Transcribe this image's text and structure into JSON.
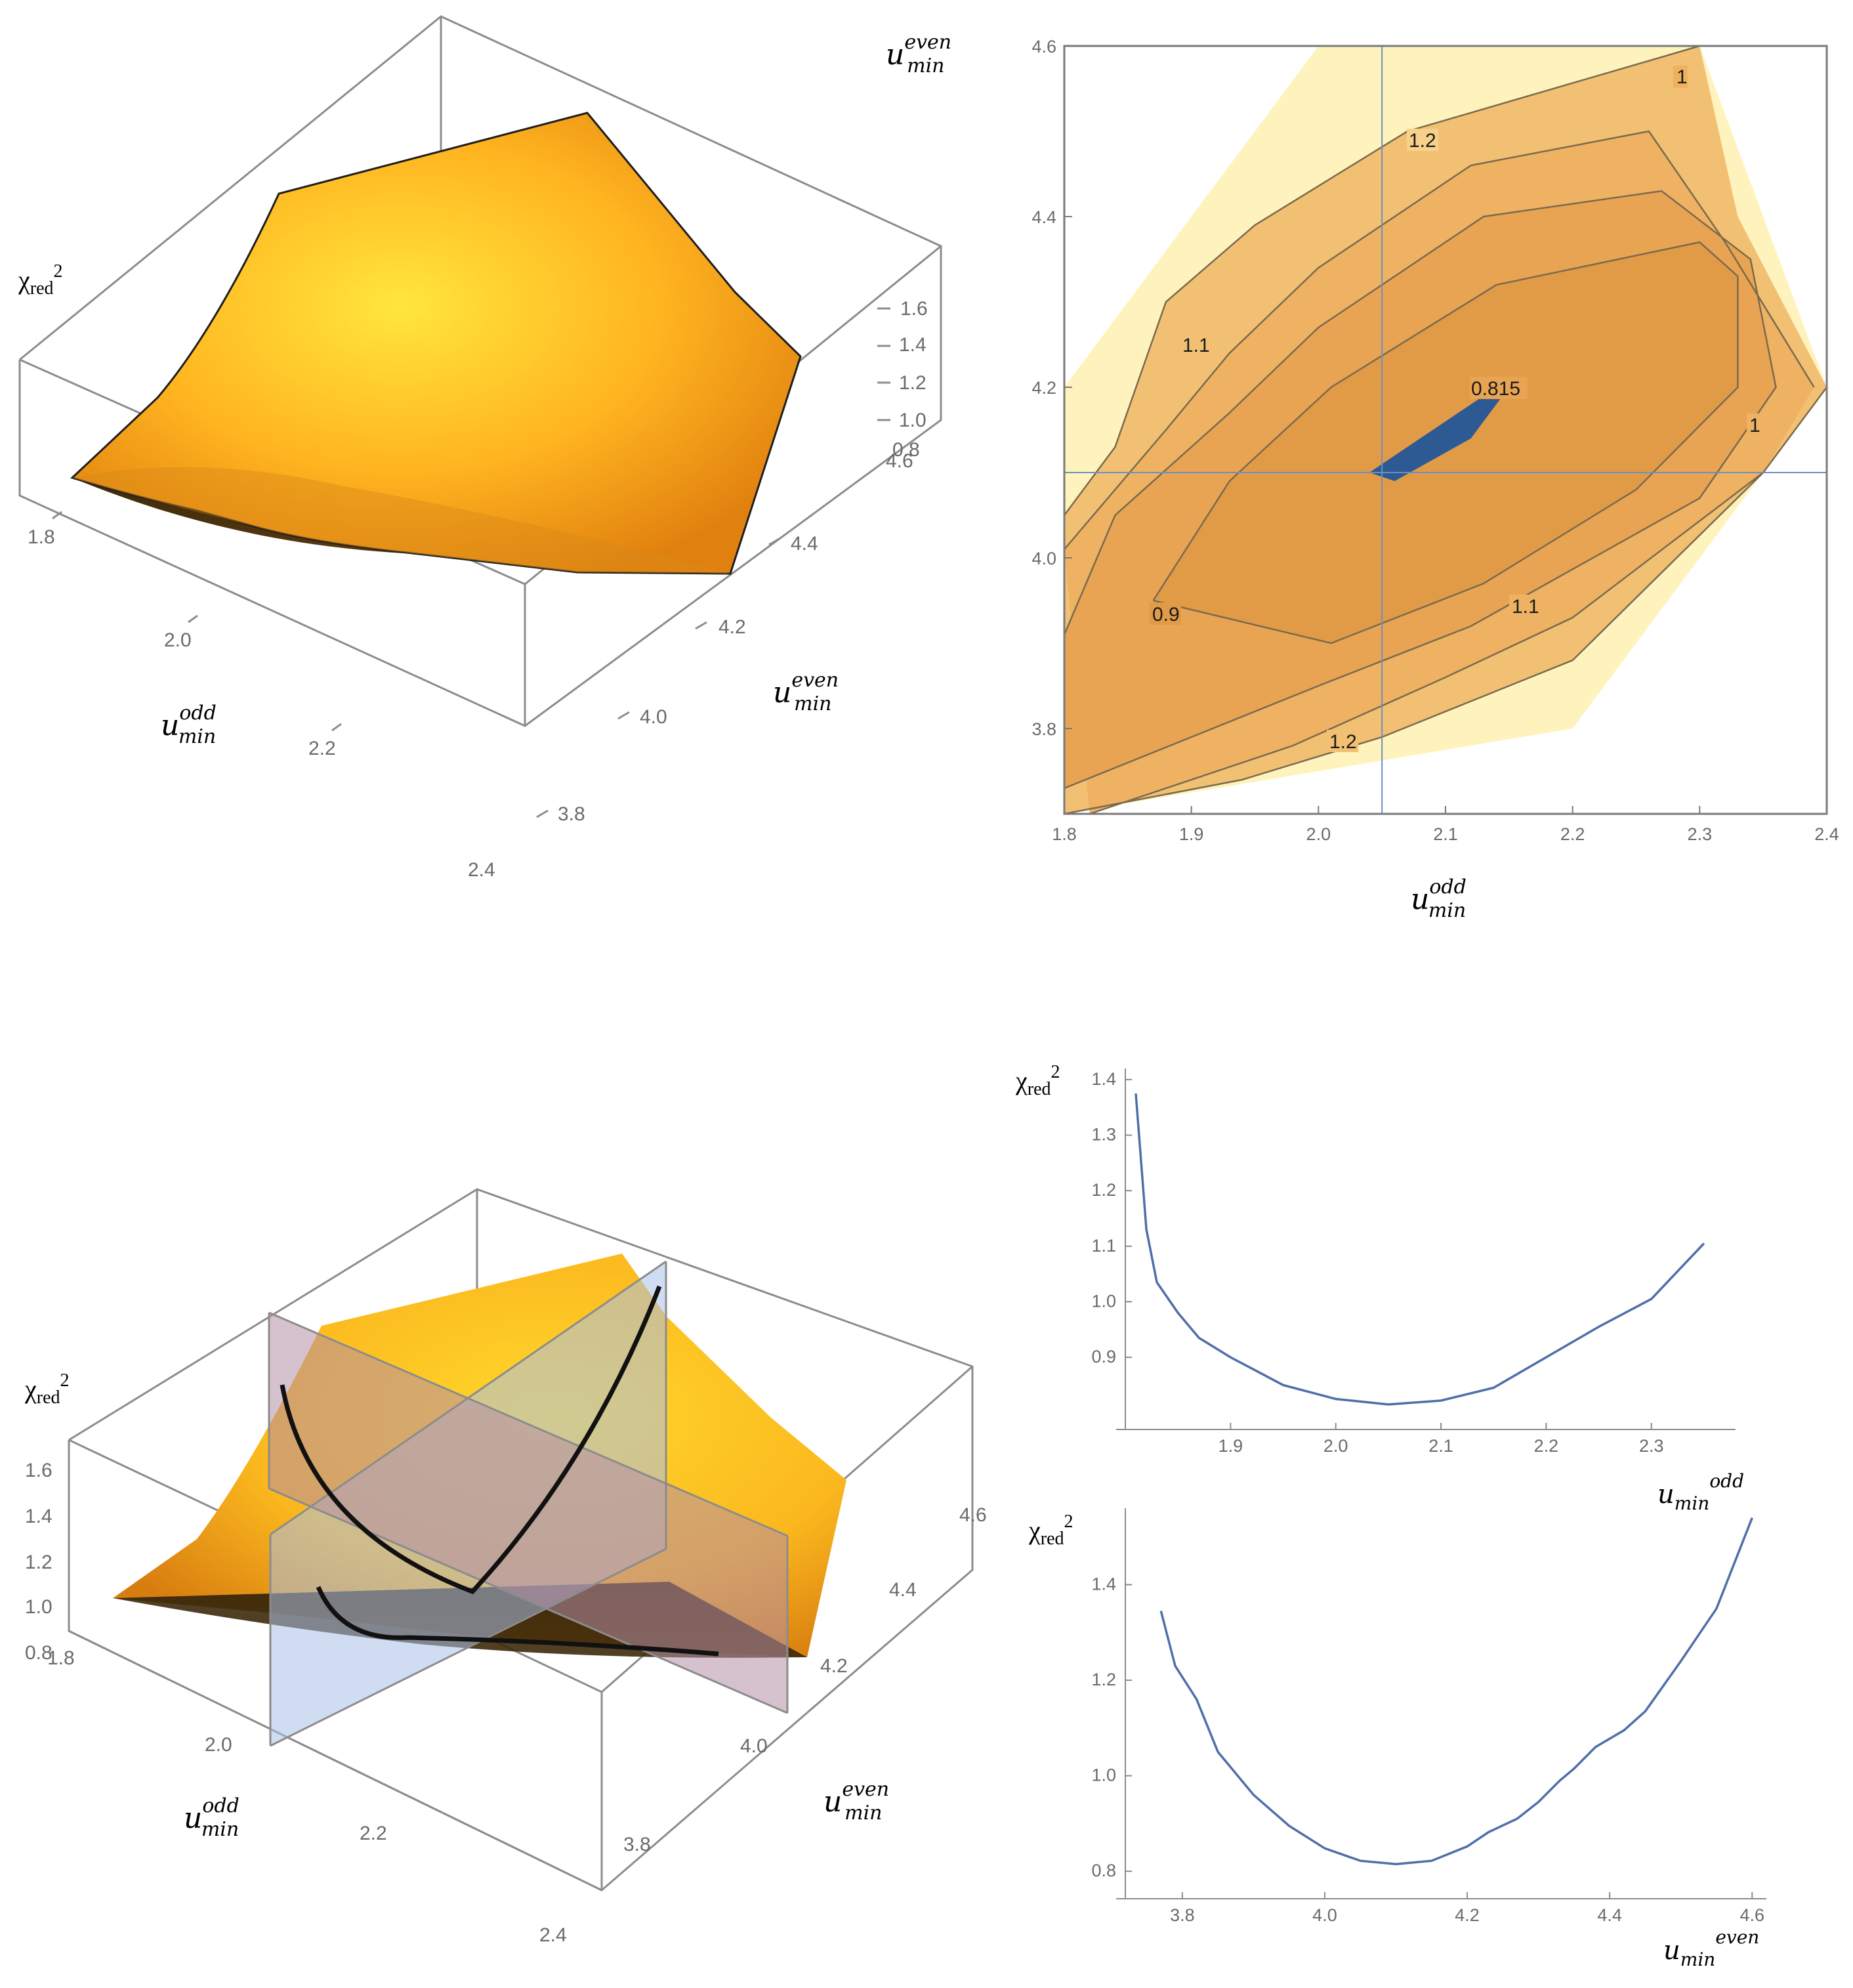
{
  "colors": {
    "surface_light": "#ffe13a",
    "surface_mid": "#ffb21e",
    "surface_dark": "#e8860e",
    "contour_pale": "#fff3bd",
    "contour_1": "#f2c073",
    "contour_2": "#eeb262",
    "contour_3": "#e8a452",
    "contour_4": "#e19b47",
    "minimum": "#2e5a94",
    "line": "#4f6fa8",
    "plane_blue": "#a9c0e6",
    "plane_purple": "#b58ea6"
  },
  "labels": {
    "u": "u",
    "min": "min",
    "odd": "odd",
    "even": "even",
    "chi": "χ",
    "red": "red",
    "sq": "2"
  },
  "chart_data": [
    {
      "type": "surface",
      "panel": "top-left",
      "x_ticks": [
        "1.8",
        "2.0",
        "2.2",
        "2.4"
      ],
      "y_ticks": [
        "3.8",
        "4.0",
        "4.2",
        "4.4",
        "4.6"
      ],
      "z_ticks": [
        "0.8",
        "1.0",
        "1.2",
        "1.4",
        "1.6"
      ],
      "xlim": [
        1.8,
        2.4
      ],
      "ylim": [
        3.7,
        4.6
      ],
      "zlim": [
        0.8,
        1.6
      ]
    },
    {
      "type": "contour",
      "panel": "top-right",
      "x_ticks": [
        "1.8",
        "1.9",
        "2.0",
        "2.1",
        "2.2",
        "2.3",
        "2.4"
      ],
      "y_ticks": [
        "3.8",
        "4.0",
        "4.2",
        "4.4",
        "4.6"
      ],
      "xlim": [
        1.8,
        2.4
      ],
      "ylim": [
        3.7,
        4.6
      ],
      "contour_labels": [
        "1.2",
        "1",
        "1.1",
        "0.815",
        "1",
        "0.9",
        "1.1",
        "1.2"
      ],
      "minimum": {
        "x": 2.05,
        "y": 4.1,
        "value": 0.815
      },
      "regions": [
        {
          "level": "pale",
          "pts": [
            [
              1.8,
              3.7
            ],
            [
              2.2,
              3.8
            ],
            [
              2.4,
              4.2
            ],
            [
              2.3,
              4.6
            ],
            [
              2.0,
              4.6
            ],
            [
              1.8,
              4.2
            ]
          ]
        },
        {
          "level": 1,
          "pts": [
            [
              1.8,
              3.7
            ],
            [
              1.94,
              3.74
            ],
            [
              2.05,
              3.79
            ],
            [
              2.2,
              3.88
            ],
            [
              2.35,
              4.1
            ],
            [
              2.4,
              4.2
            ],
            [
              2.33,
              4.4
            ],
            [
              2.3,
              4.6
            ],
            [
              2.07,
              4.5
            ],
            [
              1.95,
              4.39
            ],
            [
              1.88,
              4.3
            ],
            [
              1.84,
              4.13
            ],
            [
              1.8,
              4.05
            ]
          ]
        },
        {
          "level": 2,
          "pts": [
            [
              1.82,
              3.7
            ],
            [
              1.98,
              3.78
            ],
            [
              2.1,
              3.86
            ],
            [
              2.2,
              3.93
            ],
            [
              2.35,
              4.1
            ],
            [
              2.39,
              4.2
            ],
            [
              2.32,
              4.37
            ],
            [
              2.26,
              4.5
            ],
            [
              2.12,
              4.46
            ],
            [
              2.0,
              4.34
            ],
            [
              1.93,
              4.24
            ],
            [
              1.88,
              4.15
            ],
            [
              1.8,
              4.01
            ]
          ]
        },
        {
          "level": 3,
          "pts": [
            [
              1.8,
              3.73
            ],
            [
              2.0,
              3.85
            ],
            [
              2.12,
              3.92
            ],
            [
              2.3,
              4.07
            ],
            [
              2.36,
              4.2
            ],
            [
              2.34,
              4.35
            ],
            [
              2.27,
              4.43
            ],
            [
              2.13,
              4.4
            ],
            [
              2.0,
              4.27
            ],
            [
              1.93,
              4.17
            ],
            [
              1.84,
              4.05
            ],
            [
              1.8,
              3.91
            ]
          ]
        },
        {
          "level": 4,
          "pts": [
            [
              1.87,
              3.95
            ],
            [
              2.01,
              3.9
            ],
            [
              2.13,
              3.97
            ],
            [
              2.25,
              4.08
            ],
            [
              2.33,
              4.2
            ],
            [
              2.33,
              4.33
            ],
            [
              2.3,
              4.37
            ],
            [
              2.14,
              4.32
            ],
            [
              2.01,
              4.2
            ],
            [
              1.93,
              4.09
            ]
          ]
        }
      ],
      "contour_lines": [
        [
          [
            1.8,
            4.05
          ],
          [
            1.84,
            4.13
          ],
          [
            1.88,
            4.3
          ],
          [
            1.95,
            4.39
          ],
          [
            2.07,
            4.5
          ],
          [
            2.3,
            4.6
          ]
        ],
        [
          [
            1.8,
            3.7
          ],
          [
            1.94,
            3.74
          ],
          [
            2.05,
            3.79
          ],
          [
            2.2,
            3.88
          ],
          [
            2.35,
            4.1
          ],
          [
            2.4,
            4.2
          ]
        ],
        [
          [
            1.8,
            4.01
          ],
          [
            1.88,
            4.15
          ],
          [
            1.93,
            4.24
          ],
          [
            2.0,
            4.34
          ],
          [
            2.12,
            4.46
          ],
          [
            2.26,
            4.5
          ],
          [
            2.32,
            4.37
          ],
          [
            2.39,
            4.2
          ]
        ],
        [
          [
            1.82,
            3.7
          ],
          [
            1.98,
            3.78
          ],
          [
            2.1,
            3.86
          ],
          [
            2.2,
            3.93
          ],
          [
            2.35,
            4.1
          ]
        ],
        [
          [
            1.8,
            3.91
          ],
          [
            1.84,
            4.05
          ],
          [
            1.93,
            4.17
          ],
          [
            2.0,
            4.27
          ],
          [
            2.13,
            4.4
          ],
          [
            2.27,
            4.43
          ],
          [
            2.34,
            4.35
          ],
          [
            2.36,
            4.2
          ],
          [
            2.3,
            4.07
          ],
          [
            2.12,
            3.92
          ],
          [
            2.0,
            3.85
          ],
          [
            1.8,
            3.73
          ]
        ],
        [
          [
            1.87,
            3.95
          ],
          [
            2.01,
            3.9
          ],
          [
            2.13,
            3.97
          ],
          [
            2.25,
            4.08
          ],
          [
            2.33,
            4.2
          ],
          [
            2.33,
            4.33
          ],
          [
            2.3,
            4.37
          ],
          [
            2.14,
            4.32
          ],
          [
            2.01,
            4.2
          ],
          [
            1.93,
            4.09
          ],
          [
            1.87,
            3.95
          ]
        ]
      ],
      "min_region": [
        [
          2.04,
          4.1
        ],
        [
          2.06,
          4.09
        ],
        [
          2.12,
          4.14
        ],
        [
          2.15,
          4.2
        ],
        [
          2.13,
          4.19
        ],
        [
          2.05,
          4.11
        ]
      ]
    },
    {
      "type": "surface",
      "panel": "bottom-left",
      "x_ticks": [
        "1.8",
        "2.0",
        "2.2",
        "2.4"
      ],
      "y_ticks": [
        "3.8",
        "4.0",
        "4.2",
        "4.4",
        "4.6"
      ],
      "z_ticks": [
        "0.8",
        "1.0",
        "1.2",
        "1.4",
        "1.6"
      ]
    },
    {
      "type": "line",
      "panel": "bottom-right-upper",
      "x_ticks": [
        "1.9",
        "2.0",
        "2.1",
        "2.2",
        "2.3"
      ],
      "y_ticks": [
        "0.9",
        "1.0",
        "1.1",
        "1.2",
        "1.3",
        "1.4"
      ],
      "xlim": [
        1.8,
        2.38
      ],
      "ylim": [
        0.77,
        1.42
      ],
      "x": [
        1.81,
        1.82,
        1.83,
        1.85,
        1.87,
        1.9,
        1.95,
        2.0,
        2.05,
        2.1,
        2.15,
        2.2,
        2.25,
        2.3,
        2.35
      ],
      "y": [
        1.375,
        1.13,
        1.035,
        0.98,
        0.935,
        0.9,
        0.85,
        0.825,
        0.815,
        0.822,
        0.845,
        0.9,
        0.955,
        1.005,
        1.105
      ]
    },
    {
      "type": "line",
      "panel": "bottom-right-lower",
      "x_ticks": [
        "3.8",
        "4.0",
        "4.2",
        "4.4",
        "4.6"
      ],
      "y_ticks": [
        "0.8",
        "1.0",
        "1.2",
        "1.4"
      ],
      "xlim": [
        3.72,
        4.62
      ],
      "ylim": [
        0.77,
        1.56
      ],
      "x": [
        3.77,
        3.79,
        3.82,
        3.85,
        3.9,
        3.95,
        4.0,
        4.05,
        4.1,
        4.15,
        4.2,
        4.23,
        4.27,
        4.3,
        4.33,
        4.35,
        4.38,
        4.42,
        4.45,
        4.5,
        4.55,
        4.6
      ],
      "y": [
        1.345,
        1.23,
        1.16,
        1.05,
        0.96,
        0.895,
        0.848,
        0.822,
        0.815,
        0.822,
        0.852,
        0.882,
        0.91,
        0.945,
        0.99,
        1.015,
        1.06,
        1.095,
        1.135,
        1.24,
        1.35,
        1.54
      ]
    }
  ]
}
